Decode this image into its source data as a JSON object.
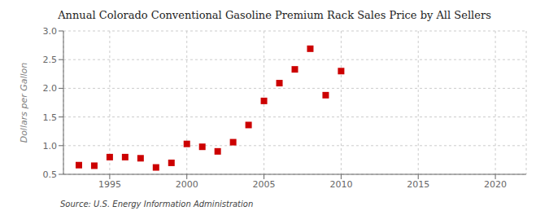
{
  "chart_data": {
    "type": "scatter",
    "title": "Annual Colorado Conventional Gasoline Premium Rack Sales Price by All Sellers",
    "ylabel": "Dollars per Gallon",
    "source": "Source: U.S. Energy Information Administration",
    "x": [
      1993,
      1994,
      1995,
      1996,
      1997,
      1998,
      1999,
      2000,
      2001,
      2002,
      2003,
      2004,
      2005,
      2006,
      2007,
      2008,
      2009,
      2010
    ],
    "values": [
      0.66,
      0.65,
      0.8,
      0.8,
      0.78,
      0.62,
      0.7,
      1.03,
      0.98,
      0.9,
      1.06,
      1.36,
      1.78,
      2.09,
      2.33,
      2.69,
      1.88,
      2.3
    ],
    "color": "#cc0000",
    "marker": "square",
    "xlim": [
      1992,
      2022
    ],
    "ylim": [
      0.5,
      3.0
    ],
    "xticks": [
      1995,
      2000,
      2005,
      2010,
      2015,
      2020
    ],
    "yticks": [
      0.5,
      {
        "value": 1.0,
        "label": "1.0"
      },
      1.5,
      {
        "value": 2.0,
        "label": "2.0"
      },
      2.5,
      {
        "value": 3.0,
        "label": "3.0"
      }
    ],
    "grid": true
  }
}
